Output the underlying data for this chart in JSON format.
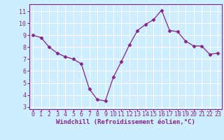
{
  "x": [
    0,
    1,
    2,
    3,
    4,
    5,
    6,
    7,
    8,
    9,
    10,
    11,
    12,
    13,
    14,
    15,
    16,
    17,
    18,
    19,
    20,
    21,
    22,
    23
  ],
  "y": [
    9.0,
    8.8,
    8.0,
    7.5,
    7.2,
    7.0,
    6.6,
    4.5,
    3.6,
    3.5,
    5.5,
    6.8,
    8.2,
    9.4,
    9.9,
    10.3,
    11.1,
    9.4,
    9.3,
    8.5,
    8.1,
    8.1,
    7.4,
    7.5
  ],
  "line_color": "#882288",
  "marker": "D",
  "marker_size": 2.5,
  "bg_color": "#cceeff",
  "grid_color": "#ffffff",
  "axis_color": "#882288",
  "spine_color": "#882288",
  "xlabel": "Windchill (Refroidissement éolien,°C)",
  "xlabel_fontsize": 6.5,
  "tick_fontsize": 6,
  "ylim": [
    2.8,
    11.6
  ],
  "xlim": [
    -0.5,
    23.5
  ],
  "yticks": [
    3,
    4,
    5,
    6,
    7,
    8,
    9,
    10,
    11
  ],
  "xticks": [
    0,
    1,
    2,
    3,
    4,
    5,
    6,
    7,
    8,
    9,
    10,
    11,
    12,
    13,
    14,
    15,
    16,
    17,
    18,
    19,
    20,
    21,
    22,
    23
  ]
}
